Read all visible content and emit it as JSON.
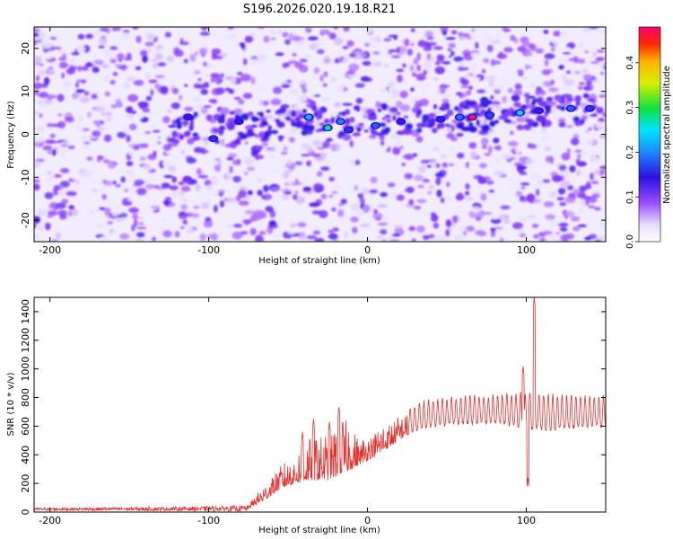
{
  "figure": {
    "title": "S196.2026.020.19.18.R21"
  },
  "chart_data": [
    {
      "type": "heatmap",
      "title": "S196.2026.020.19.18.R21",
      "xlabel": "Height of straight line (km)",
      "ylabel": "Frequency (Hz)",
      "xlim": [
        -210,
        150
      ],
      "ylim": [
        -25,
        25
      ],
      "xticks": [
        -200,
        -100,
        0,
        100
      ],
      "yticks": [
        -20,
        -10,
        0,
        10,
        20
      ],
      "colormap": "rainbow (white to purple to blue to cyan to green to yellow to red to magenta)",
      "colorbar": {
        "label": "Normalized spectral amplitude",
        "range": [
          0,
          0.48
        ],
        "ticks": [
          "0.0",
          "0.1",
          "0.2",
          "0.3",
          "0.4"
        ]
      },
      "description": "Purple background noise field with a band of higher amplitude near 0 to +5 Hz rising slowly from left to right",
      "hotspots": [
        {
          "x": -113,
          "y": 4,
          "v": 0.15
        },
        {
          "x": -97,
          "y": -1,
          "v": 0.16
        },
        {
          "x": -81,
          "y": 3,
          "v": 0.14
        },
        {
          "x": -37,
          "y": 4,
          "v": 0.22
        },
        {
          "x": -25,
          "y": 1.5,
          "v": 0.28
        },
        {
          "x": -17,
          "y": 3,
          "v": 0.2
        },
        {
          "x": -12,
          "y": 1,
          "v": 0.16
        },
        {
          "x": 5,
          "y": 2,
          "v": 0.18
        },
        {
          "x": 21,
          "y": 3,
          "v": 0.15
        },
        {
          "x": 46,
          "y": 3.5,
          "v": 0.15
        },
        {
          "x": 58,
          "y": 4,
          "v": 0.19
        },
        {
          "x": 66,
          "y": 4,
          "v": 0.46
        },
        {
          "x": 77,
          "y": 4.5,
          "v": 0.17
        },
        {
          "x": 96,
          "y": 5,
          "v": 0.24
        },
        {
          "x": 108,
          "y": 5.5,
          "v": 0.15
        },
        {
          "x": 128,
          "y": 6,
          "v": 0.18
        },
        {
          "x": 140,
          "y": 6,
          "v": 0.16
        }
      ]
    },
    {
      "type": "line",
      "xlabel": "Height of straight line (km)",
      "ylabel": "SNR (10 * v/v)",
      "xlim": [
        -210,
        150
      ],
      "ylim": [
        0,
        1500
      ],
      "xticks": [
        -200,
        -100,
        0,
        100
      ],
      "yticks": [
        0,
        200,
        400,
        600,
        800,
        1000,
        1200,
        1400
      ],
      "color": "#e8302c",
      "envelope": {
        "x": [
          -210,
          -120,
          -75,
          -65,
          -55,
          -45,
          -35,
          -25,
          -15,
          -5,
          5,
          15,
          25,
          35,
          45,
          55,
          65,
          75,
          85,
          95,
          105,
          115,
          125,
          135,
          150
        ],
        "base": [
          20,
          22,
          25,
          80,
          160,
          200,
          220,
          220,
          270,
          330,
          390,
          460,
          540,
          590,
          610,
          620,
          620,
          630,
          620,
          600,
          580,
          580,
          590,
          600,
          600
        ],
        "peak": [
          35,
          45,
          60,
          200,
          350,
          420,
          580,
          620,
          700,
          520,
          600,
          660,
          720,
          770,
          790,
          800,
          810,
          810,
          820,
          830,
          830,
          820,
          810,
          810,
          810
        ]
      },
      "spikes": [
        {
          "x": -41,
          "y": 560
        },
        {
          "x": -34,
          "y": 650
        },
        {
          "x": -24,
          "y": 630
        },
        {
          "x": -18,
          "y": 735
        },
        {
          "x": 98,
          "y": 1020
        },
        {
          "x": 101,
          "y": 240
        },
        {
          "x": 105,
          "y": 1500
        }
      ]
    }
  ]
}
